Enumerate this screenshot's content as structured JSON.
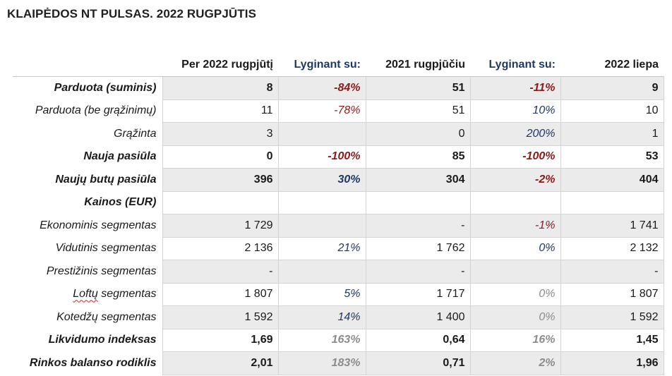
{
  "title": "KLAIPĖDOS NT PULSAS. 2022 RUGPJŪTIS",
  "headers": [
    "",
    "Per 2022 rugpjūtį",
    "Lyginant su:",
    "2021 rugpjūčiu",
    "Lyginant su:",
    "2022 liepa"
  ],
  "rows": [
    {
      "label": "Parduota (suminis)",
      "bold": true,
      "shade": true,
      "cells": [
        {
          "v": "8"
        },
        {
          "v": "-84%",
          "c": "red"
        },
        {
          "v": "51"
        },
        {
          "v": "-11%",
          "c": "red"
        },
        {
          "v": "9"
        }
      ]
    },
    {
      "label": "Parduota (be grąžinimų)",
      "bold": false,
      "shade": false,
      "cells": [
        {
          "v": "11"
        },
        {
          "v": "-78%",
          "c": "red"
        },
        {
          "v": "51"
        },
        {
          "v": "10%",
          "c": "blue"
        },
        {
          "v": "10"
        }
      ]
    },
    {
      "label": "Grąžinta",
      "bold": false,
      "shade": true,
      "cells": [
        {
          "v": "3"
        },
        {
          "v": ""
        },
        {
          "v": "0"
        },
        {
          "v": "200%",
          "c": "blue"
        },
        {
          "v": "1"
        }
      ]
    },
    {
      "label": "Nauja pasiūla",
      "bold": true,
      "shade": false,
      "cells": [
        {
          "v": "0"
        },
        {
          "v": "-100%",
          "c": "red"
        },
        {
          "v": "85"
        },
        {
          "v": "-100%",
          "c": "red"
        },
        {
          "v": "53"
        }
      ]
    },
    {
      "label": "Naujų butų pasiūla",
      "bold": true,
      "shade": true,
      "cells": [
        {
          "v": "396"
        },
        {
          "v": "30%",
          "c": "blue"
        },
        {
          "v": "304"
        },
        {
          "v": "-2%",
          "c": "red"
        },
        {
          "v": "404"
        }
      ]
    },
    {
      "label": "Kainos (EUR)",
      "bold": true,
      "shade": false,
      "cells": [
        {
          "v": ""
        },
        {
          "v": ""
        },
        {
          "v": ""
        },
        {
          "v": ""
        },
        {
          "v": ""
        }
      ]
    },
    {
      "label": "Ekonominis segmentas",
      "bold": false,
      "shade": true,
      "cells": [
        {
          "v": "1 729"
        },
        {
          "v": ""
        },
        {
          "v": "-"
        },
        {
          "v": "-1%",
          "c": "red"
        },
        {
          "v": "1 741"
        }
      ]
    },
    {
      "label": "Vidutinis segmentas",
      "bold": false,
      "shade": false,
      "cells": [
        {
          "v": "2 136"
        },
        {
          "v": "21%",
          "c": "blue"
        },
        {
          "v": "1 762"
        },
        {
          "v": "0%",
          "c": "blue"
        },
        {
          "v": "2 132"
        }
      ]
    },
    {
      "label": "Prestižinis segmentas",
      "bold": false,
      "shade": true,
      "cells": [
        {
          "v": "-"
        },
        {
          "v": ""
        },
        {
          "v": "-"
        },
        {
          "v": ""
        },
        {
          "v": "-"
        }
      ]
    },
    {
      "label": "Loftų segmentas",
      "bold": false,
      "shade": false,
      "spell": "Loftų",
      "cells": [
        {
          "v": "1 807"
        },
        {
          "v": "5%",
          "c": "blue"
        },
        {
          "v": "1 717"
        },
        {
          "v": "0%",
          "c": "gray"
        },
        {
          "v": "1 807"
        }
      ]
    },
    {
      "label": "Kotedžų segmentas",
      "bold": false,
      "shade": true,
      "cells": [
        {
          "v": "1 592"
        },
        {
          "v": "14%",
          "c": "blue"
        },
        {
          "v": "1 400"
        },
        {
          "v": "0%",
          "c": "gray"
        },
        {
          "v": "1 592"
        }
      ]
    },
    {
      "label": "Likvidumo indeksas",
      "bold": true,
      "shade": false,
      "cells": [
        {
          "v": "1,69"
        },
        {
          "v": "163%",
          "c": "gray"
        },
        {
          "v": "0,64"
        },
        {
          "v": "16%",
          "c": "gray"
        },
        {
          "v": "1,45"
        }
      ]
    },
    {
      "label": "Rinkos balanso rodiklis",
      "bold": true,
      "shade": true,
      "cells": [
        {
          "v": "2,01"
        },
        {
          "v": "183%",
          "c": "gray"
        },
        {
          "v": "0,71"
        },
        {
          "v": "2%",
          "c": "gray"
        },
        {
          "v": "1,96"
        }
      ]
    }
  ]
}
